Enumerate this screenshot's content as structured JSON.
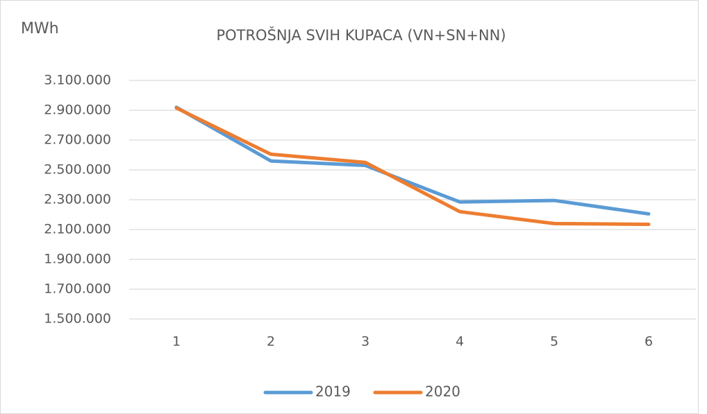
{
  "chart_data": {
    "type": "line",
    "title": "POTROŠNJA SVIH KUPACA (VN+SN+NN)",
    "y_label": "MWh",
    "categories": [
      "1",
      "2",
      "3",
      "4",
      "5",
      "6"
    ],
    "series": [
      {
        "name": "2019",
        "color": "#5b9bd5",
        "values": [
          2920000,
          2560000,
          2530000,
          2285000,
          2295000,
          2205000
        ]
      },
      {
        "name": "2020",
        "color": "#ed7d31",
        "values": [
          2915000,
          2605000,
          2550000,
          2220000,
          2140000,
          2135000
        ]
      }
    ],
    "ylim": [
      1500000,
      3100000
    ],
    "yticks": [
      {
        "value": 1500000,
        "label": "1.500.000"
      },
      {
        "value": 1700000,
        "label": "1.700.000"
      },
      {
        "value": 1900000,
        "label": "1.900.000"
      },
      {
        "value": 2100000,
        "label": "2.100.000"
      },
      {
        "value": 2300000,
        "label": "2.300.000"
      },
      {
        "value": 2500000,
        "label": "2.500.000"
      },
      {
        "value": 2700000,
        "label": "2.700.000"
      },
      {
        "value": 2900000,
        "label": "2.900.000"
      },
      {
        "value": 3100000,
        "label": "3.100.000"
      }
    ],
    "grid": true,
    "legend": "bottom"
  }
}
